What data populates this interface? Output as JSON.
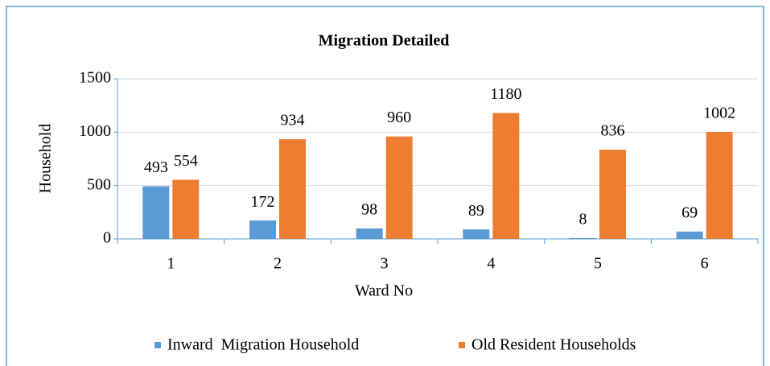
{
  "chart_data": {
    "type": "bar",
    "title": "Migration Detailed",
    "x_label": "Ward No",
    "y_label": "Household",
    "categories": [
      "1",
      "2",
      "3",
      "4",
      "5",
      "6"
    ],
    "series": [
      {
        "name": "Inward  Migration Household",
        "color": "#5b9bd5",
        "values": [
          493,
          172,
          98,
          89,
          8,
          69
        ]
      },
      {
        "name": "Old Resident Households",
        "color": "#ed7d31",
        "values": [
          554,
          934,
          960,
          1180,
          836,
          1002
        ]
      }
    ],
    "ylim": [
      0,
      1500
    ],
    "yticks": [
      0,
      500,
      1000,
      1500
    ],
    "grid": true,
    "legend": "bottom"
  }
}
